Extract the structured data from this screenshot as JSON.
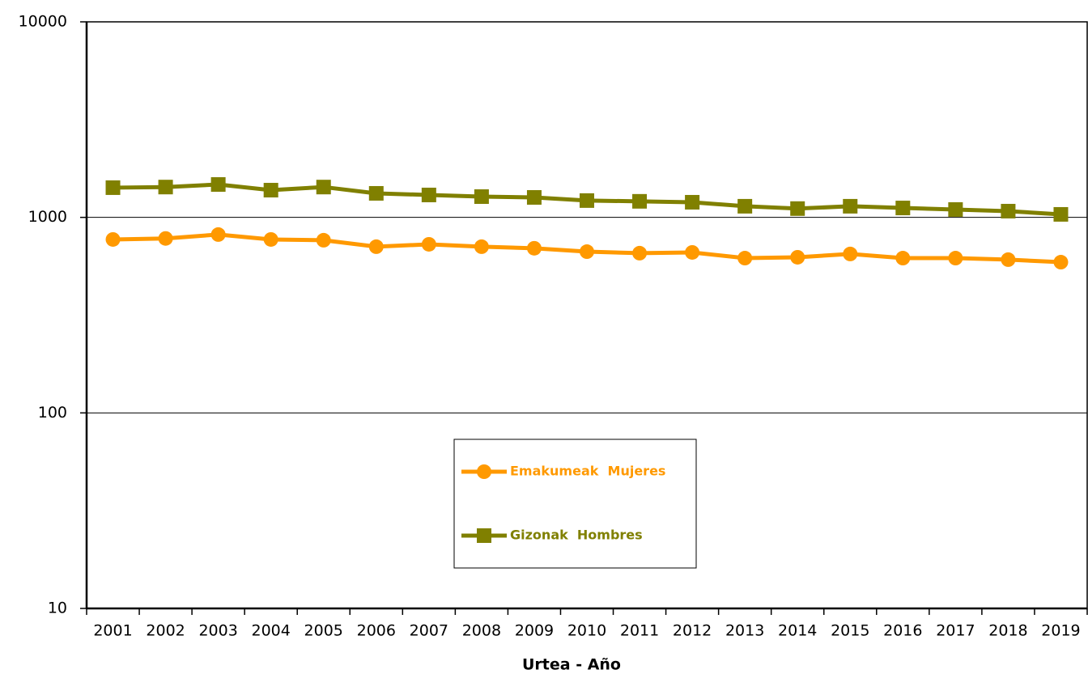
{
  "chart_data": {
    "type": "line",
    "x_label": "Urtea - Año",
    "categories": [
      "2001",
      "2002",
      "2003",
      "2004",
      "2005",
      "2006",
      "2007",
      "2008",
      "2009",
      "2010",
      "2011",
      "2012",
      "2013",
      "2014",
      "2015",
      "2016",
      "2017",
      "2018",
      "2019"
    ],
    "series": [
      {
        "name": "Emakumeak  Mujeres",
        "color": "#ff9900",
        "marker": "circle",
        "values": [
          771,
          780,
          817,
          771,
          764,
          708,
          728,
          708,
          695,
          668,
          656,
          662,
          619,
          625,
          650,
          619,
          619,
          608,
          590
        ]
      },
      {
        "name": "Gizonak  Hombres",
        "color": "#808000",
        "marker": "square",
        "values": [
          1419,
          1429,
          1473,
          1378,
          1429,
          1327,
          1302,
          1277,
          1265,
          1219,
          1208,
          1195,
          1140,
          1109,
          1140,
          1117,
          1097,
          1076,
          1036
        ]
      }
    ],
    "ylim": [
      10,
      10000
    ],
    "yticks": [
      10,
      100,
      1000,
      10000
    ],
    "log_y": true,
    "grid": true
  }
}
